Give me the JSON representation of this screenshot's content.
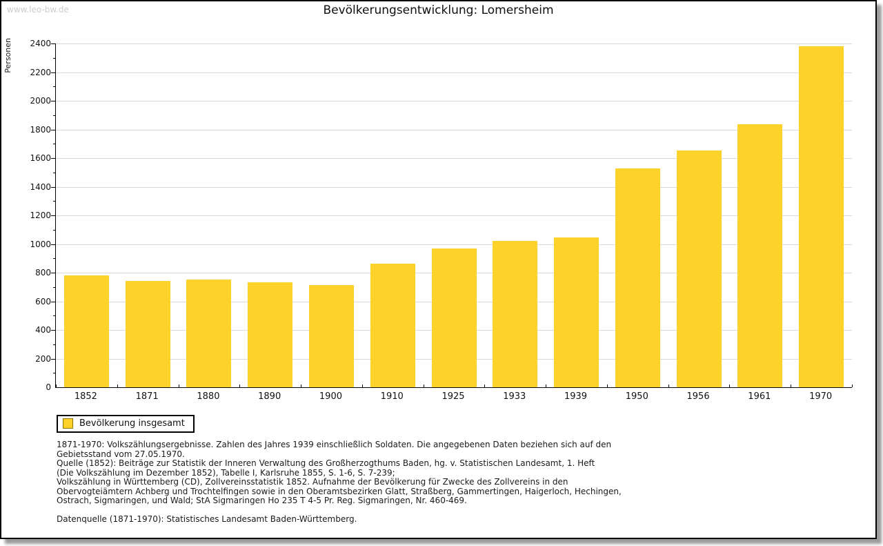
{
  "watermark": "www.leo-bw.de",
  "header": {
    "title": "Bevölkerungsentwicklung: Lomersheim"
  },
  "legend": {
    "label": "Bevölkerung insgesamt",
    "swatch_color": "#fdd32b"
  },
  "colors": {
    "bar": "#fdd32b",
    "gridline": "#d9d9d9",
    "axis": "#000000",
    "watermark": "#cccccc",
    "frame_shadow": "#9c9c9c"
  },
  "chart_data": {
    "type": "bar",
    "title": "Bevölkerungsentwicklung: Lomersheim",
    "xlabel": "",
    "ylabel": "Personen",
    "categories": [
      "1852",
      "1871",
      "1880",
      "1890",
      "1900",
      "1910",
      "1925",
      "1933",
      "1939",
      "1950",
      "1956",
      "1961",
      "1970"
    ],
    "values": [
      779,
      741,
      752,
      734,
      712,
      863,
      970,
      1023,
      1045,
      1530,
      1655,
      1835,
      2380
    ],
    "ylim": [
      0,
      2400
    ],
    "ytick_step": 200,
    "yminor_step": 100,
    "grid": true,
    "legend": [
      "Bevölkerung insgesamt"
    ],
    "legend_position": "bottom-left",
    "bar_color": "#fdd32b"
  },
  "footnote_lines": [
    "1871-1970: Volkszählungsergebnisse. Zahlen des Jahres 1939 einschließlich Soldaten. Die angegebenen Daten beziehen sich auf den",
    "Gebietsstand vom 27.05.1970.",
    "Quelle (1852): Beiträge zur Statistik der Inneren Verwaltung des Großherzogthums Baden, hg. v. Statistischen Landesamt, 1. Heft",
    "(Die Volkszählung im Dezember 1852), Tabelle I, Karlsruhe 1855, S. 1-6, S. 7-239;",
    "Volkszählung in Württemberg (CD), Zollvereinsstatistik 1852. Aufnahme der Bevölkerung für Zwecke des Zollvereins in den",
    "Obervogteiämtern Achberg und Trochtelfingen sowie in den Oberamtsbezirken Glatt, Straßberg, Gammertingen, Haigerloch, Hechingen,",
    "Ostrach, Sigmaringen, und Wald; StA Sigmaringen Ho 235 T 4-5 Pr. Reg. Sigmaringen, Nr. 460-469.",
    "",
    "Datenquelle (1871-1970): Statistisches Landesamt Baden-Württemberg."
  ]
}
